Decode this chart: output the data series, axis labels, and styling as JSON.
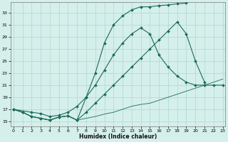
{
  "background_color": "#d5efeb",
  "grid_color": "#aed8d2",
  "line_color": "#1a6b5a",
  "xlabel": "Humidex (Indice chaleur)",
  "x_ticks": [
    0,
    1,
    2,
    3,
    4,
    5,
    6,
    7,
    8,
    9,
    10,
    11,
    12,
    13,
    14,
    15,
    16,
    17,
    18,
    19,
    20,
    21,
    22,
    23
  ],
  "y_ticks": [
    15,
    17,
    19,
    21,
    23,
    25,
    27,
    29,
    31,
    33
  ],
  "xlim": [
    -0.3,
    23.3
  ],
  "ylim": [
    14.2,
    34.8
  ],
  "line1_x": [
    0,
    1,
    2,
    3,
    4,
    5,
    6,
    7,
    8,
    9,
    10,
    11,
    12,
    13,
    14,
    15,
    16,
    17,
    18,
    19
  ],
  "line1_y": [
    17.0,
    16.5,
    15.8,
    15.5,
    15.2,
    15.7,
    15.9,
    15.2,
    19.0,
    23.0,
    28.0,
    31.0,
    32.5,
    33.5,
    34.0,
    34.0,
    34.2,
    34.3,
    34.5,
    34.6
  ],
  "line2_x": [
    0,
    2,
    3,
    4,
    5,
    6,
    7,
    8,
    9,
    10,
    11,
    12,
    13,
    14,
    15,
    16,
    17,
    18,
    19,
    20,
    21,
    22,
    23
  ],
  "line2_y": [
    17.0,
    16.5,
    16.3,
    15.8,
    16.0,
    16.5,
    17.5,
    19.0,
    21.0,
    23.5,
    26.0,
    28.0,
    29.5,
    30.5,
    29.5,
    26.0,
    24.0,
    22.5,
    21.5,
    21.0,
    21.0,
    21.0,
    21.0
  ],
  "line3_x": [
    0,
    1,
    2,
    3,
    4,
    5,
    6,
    7,
    8,
    9,
    10,
    11,
    12,
    13,
    14,
    15,
    16,
    17,
    18,
    19,
    20,
    21
  ],
  "line3_y": [
    17.0,
    16.5,
    15.8,
    15.5,
    15.2,
    15.7,
    15.9,
    15.2,
    16.5,
    18.0,
    19.5,
    21.0,
    22.5,
    24.0,
    25.5,
    27.0,
    28.5,
    30.0,
    31.5,
    29.5,
    25.0,
    21.5
  ],
  "line4_x": [
    0,
    1,
    2,
    3,
    4,
    5,
    6,
    7,
    8,
    9,
    10,
    11,
    12,
    13,
    14,
    15,
    16,
    17,
    18,
    19,
    20,
    21,
    22,
    23
  ],
  "line4_y": [
    17.0,
    16.5,
    15.8,
    15.5,
    15.2,
    15.7,
    15.9,
    15.2,
    15.5,
    15.8,
    16.2,
    16.5,
    17.0,
    17.5,
    17.8,
    18.0,
    18.5,
    19.0,
    19.5,
    20.0,
    20.5,
    21.0,
    21.5,
    22.0
  ]
}
